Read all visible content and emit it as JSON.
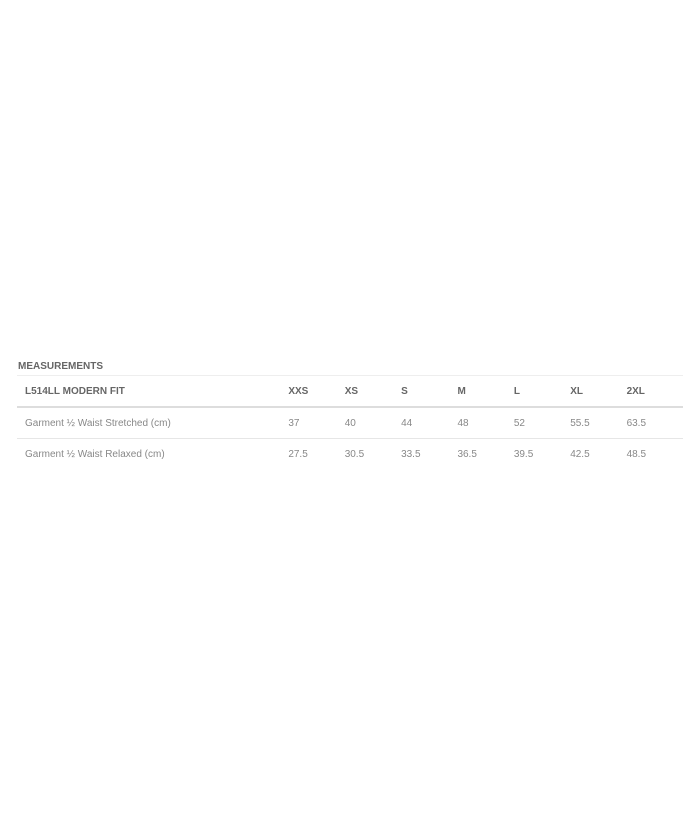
{
  "section_title": "MEASUREMENTS",
  "table": {
    "headers": [
      "L514LL MODERN FIT",
      "XXS",
      "XS",
      "S",
      "M",
      "L",
      "XL",
      "2XL"
    ],
    "rows": [
      [
        "Garment ½ Waist Stretched (cm)",
        "37",
        "40",
        "44",
        "48",
        "52",
        "55.5",
        "63.5"
      ],
      [
        "Garment ½ Waist Relaxed (cm)",
        "27.5",
        "30.5",
        "33.5",
        "36.5",
        "39.5",
        "42.5",
        "48.5"
      ]
    ]
  }
}
